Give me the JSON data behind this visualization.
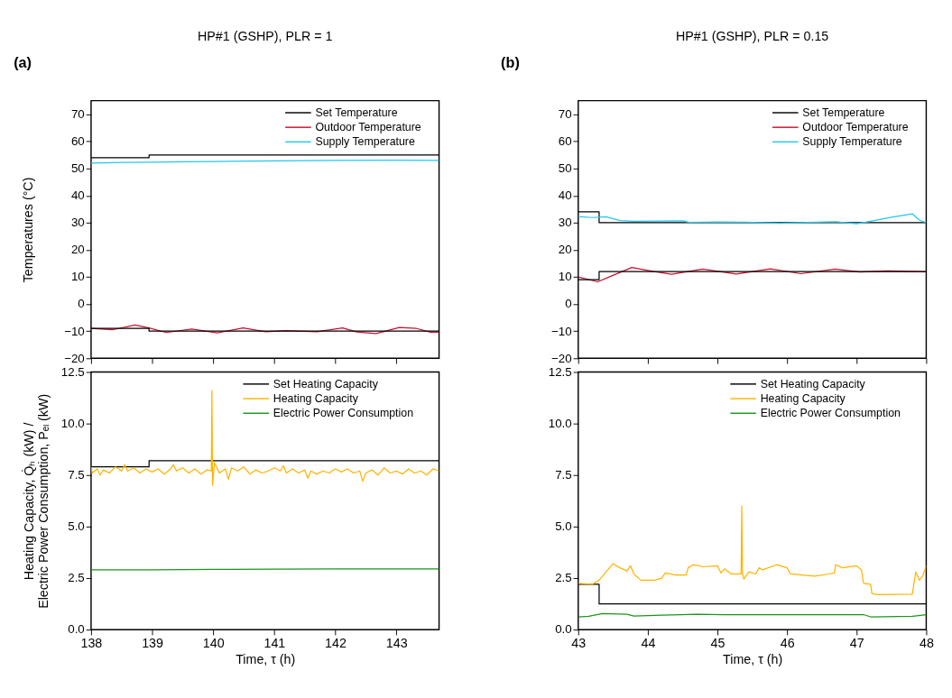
{
  "chart_data": [
    {
      "type": "line",
      "title": "HP#1 (GSHP), PLR = 1",
      "ylabel": "Temperatures (°C)",
      "annotations": [
        "(a)"
      ],
      "xlim": [
        138,
        143.7
      ],
      "xticks": [
        138,
        139,
        140,
        141,
        142,
        143
      ],
      "ylim": [
        -20,
        75
      ],
      "yticks": [
        -20,
        -10,
        0,
        10,
        20,
        30,
        40,
        50,
        60,
        70
      ],
      "tick_labels": "y",
      "legend": "top right",
      "grid": false,
      "series": [
        {
          "name": "Set Temperature",
          "color": "#000000",
          "type": "step",
          "x": [
            138,
            138.95,
            143.7
          ],
          "values": [
            54,
            55,
            55
          ]
        },
        {
          "name": "Outdoor Temperature",
          "color": "#c8102e",
          "x": [
            138,
            138.35,
            138.72,
            138.95,
            139.23,
            139.65,
            140.07,
            140.49,
            140.86,
            141.19,
            141.7,
            142.12,
            142.35,
            142.67,
            143.05,
            143.33,
            143.56,
            143.69
          ],
          "values": [
            -9.0,
            -9.5,
            -7.7,
            -8.8,
            -10.5,
            -9.2,
            -10.6,
            -8.8,
            -10.2,
            -9.8,
            -10.2,
            -8.8,
            -10.3,
            -10.9,
            -8.6,
            -9.0,
            -10.4,
            -10.4
          ]
        },
        {
          "name": "Supply Temperature",
          "color": "#1ec8f0",
          "x": [
            138,
            138.5,
            139,
            139.5,
            140,
            141,
            142,
            143,
            143.7
          ],
          "values": [
            52.0,
            52.2,
            52.3,
            52.5,
            52.6,
            52.8,
            53.0,
            53.1,
            53.0
          ]
        },
        {
          "name": null,
          "color": "#000000",
          "type": "step",
          "x": [
            138,
            138.95,
            143.7
          ],
          "values": [
            -9,
            -10,
            -10
          ]
        }
      ]
    },
    {
      "type": "line",
      "title": "HP#1 (GSHP), PLR = 0.15",
      "annotations": [
        "(b)"
      ],
      "xlim": [
        43,
        48
      ],
      "xticks": [
        43,
        44,
        45,
        46,
        47,
        48
      ],
      "ylim": [
        -20,
        75
      ],
      "yticks": [
        -20,
        -10,
        0,
        10,
        20,
        30,
        40,
        50,
        60,
        70
      ],
      "tick_labels": "y",
      "legend": "top right",
      "grid": false,
      "series": [
        {
          "name": "Set Temperature",
          "color": "#000000",
          "type": "step",
          "x": [
            43,
            43.3,
            48
          ],
          "values": [
            34,
            30,
            30
          ]
        },
        {
          "name": "Outdoor Temperature",
          "color": "#c8102e",
          "x": [
            43,
            43.28,
            43.49,
            43.77,
            44.09,
            44.34,
            44.79,
            45.27,
            45.76,
            46.2,
            46.69,
            47.05,
            47.45,
            48
          ],
          "values": [
            10,
            8.2,
            10.5,
            13.5,
            12,
            11,
            12.9,
            11.1,
            13.0,
            11.2,
            12.9,
            11.8,
            12.2,
            11.9
          ]
        },
        {
          "name": "Supply Temperature",
          "color": "#1ec8f0",
          "x": [
            43,
            43.2,
            43.4,
            43.6,
            43.8,
            44.5,
            44.6,
            45.0,
            45.4,
            45.9,
            46.3,
            46.7,
            47.0,
            47.2,
            47.5,
            47.8,
            47.9,
            48
          ],
          "values": [
            32.3,
            31.9,
            32.2,
            30.8,
            30.5,
            30.7,
            30.1,
            30.3,
            30.2,
            29.8,
            30.1,
            30.4,
            29.6,
            30.5,
            32,
            33.3,
            31,
            30
          ]
        },
        {
          "name": null,
          "color": "#000000",
          "type": "step",
          "x": [
            43,
            43.3,
            48
          ],
          "values": [
            9,
            12,
            12
          ]
        }
      ]
    },
    {
      "type": "line",
      "xlabel": "Time, τ (h)",
      "ylabel": "Heating Capacity, Q̇ₕ (kW) / Electric Power Consumption, Pₑₗ (kW)",
      "xlim": [
        138,
        143.7
      ],
      "xticks": [
        138,
        139,
        140,
        141,
        142,
        143
      ],
      "ylim": [
        0,
        12.5
      ],
      "yticks": [
        {
          "value": 0,
          "label": "0.0"
        },
        {
          "value": 2.5,
          "label": "2.5"
        },
        {
          "value": 5,
          "label": "5.0"
        },
        {
          "value": 7.5,
          "label": "7.5"
        },
        {
          "value": 10,
          "label": "10.0"
        },
        {
          "value": 12.5,
          "label": "12.5"
        }
      ],
      "legend": "top right",
      "grid": false,
      "series": [
        {
          "name": "Set Heating Capacity",
          "color": "#000000",
          "type": "step",
          "x": [
            138,
            138.95,
            143.7
          ],
          "values": [
            7.9,
            8.2,
            8.2
          ]
        },
        {
          "name": "Heating Capacity",
          "color": "#ffb300",
          "x": [
            138.0,
            138.02,
            138.1,
            138.15,
            138.2,
            138.3,
            138.4,
            138.5,
            138.55,
            138.6,
            138.7,
            138.8,
            138.9,
            139.0,
            139.1,
            139.2,
            139.3,
            139.35,
            139.4,
            139.5,
            139.6,
            139.7,
            139.8,
            139.9,
            139.97,
            139.98,
            139.99,
            140.02,
            140.1,
            140.2,
            140.25,
            140.3,
            140.4,
            140.5,
            140.6,
            140.7,
            140.8,
            140.9,
            141.0,
            141.1,
            141.15,
            141.2,
            141.3,
            141.4,
            141.5,
            141.55,
            141.6,
            141.7,
            141.8,
            141.9,
            142.0,
            142.1,
            142.2,
            142.3,
            142.4,
            142.45,
            142.5,
            142.6,
            142.7,
            142.8,
            142.9,
            143.0,
            143.1,
            143.2,
            143.3,
            143.4,
            143.5,
            143.6,
            143.7
          ],
          "values": [
            7.9,
            7.6,
            7.8,
            7.5,
            7.75,
            7.6,
            7.9,
            7.7,
            8.0,
            7.7,
            7.85,
            7.6,
            7.8,
            7.65,
            7.8,
            7.55,
            7.8,
            8.0,
            7.7,
            7.85,
            7.6,
            7.8,
            7.55,
            7.75,
            7.7,
            11.6,
            7.0,
            8.1,
            7.6,
            7.8,
            7.3,
            7.85,
            7.7,
            7.9,
            7.55,
            7.75,
            7.6,
            7.7,
            7.85,
            7.7,
            7.95,
            7.6,
            7.8,
            7.6,
            7.75,
            7.35,
            7.7,
            7.55,
            7.7,
            7.6,
            7.8,
            7.65,
            7.8,
            7.6,
            7.7,
            7.2,
            7.6,
            7.75,
            7.5,
            7.85,
            7.6,
            7.7,
            7.55,
            7.8,
            7.6,
            7.7,
            7.5,
            7.8,
            7.7
          ]
        },
        {
          "name": "Electric Power Consumption",
          "color": "#1a961a",
          "x": [
            138,
            139,
            140,
            141,
            142,
            143,
            143.7
          ],
          "values": [
            2.9,
            2.9,
            2.92,
            2.93,
            2.95,
            2.95,
            2.95
          ]
        }
      ]
    },
    {
      "type": "line",
      "xlabel": "Time, τ (h)",
      "xlim": [
        43,
        48
      ],
      "xticks": [
        43,
        44,
        45,
        46,
        47,
        48
      ],
      "ylim": [
        0,
        12.5
      ],
      "yticks": [
        {
          "value": 0,
          "label": "0.0"
        },
        {
          "value": 2.5,
          "label": "2.5"
        },
        {
          "value": 5,
          "label": "5.0"
        },
        {
          "value": 7.5,
          "label": "7.5"
        },
        {
          "value": 10,
          "label": "10.0"
        },
        {
          "value": 12.5,
          "label": "12.5"
        }
      ],
      "legend": "top right",
      "grid": false,
      "series": [
        {
          "name": "Set Heating Capacity",
          "color": "#000000",
          "type": "step",
          "x": [
            43,
            43.3,
            48
          ],
          "values": [
            2.2,
            1.25,
            1.25
          ]
        },
        {
          "name": "Heating Capacity",
          "color": "#ffb300",
          "x": [
            43,
            43.2,
            43.3,
            43.4,
            43.5,
            43.6,
            43.7,
            43.75,
            43.8,
            43.9,
            44.1,
            44.2,
            44.25,
            44.4,
            44.55,
            44.58,
            44.65,
            44.8,
            45.0,
            45.05,
            45.1,
            45.2,
            45.34,
            45.35,
            45.36,
            45.38,
            45.45,
            45.55,
            45.6,
            45.65,
            45.85,
            46.0,
            46.05,
            46.4,
            46.6,
            46.68,
            46.7,
            46.8,
            47.0,
            47.07,
            47.1,
            47.2,
            47.22,
            47.3,
            47.8,
            47.85,
            47.9,
            47.95,
            48.0
          ],
          "values": [
            2.25,
            2.2,
            2.4,
            2.8,
            3.2,
            3.0,
            2.85,
            3.1,
            2.7,
            2.4,
            2.4,
            2.5,
            2.75,
            2.65,
            2.65,
            3.0,
            3.15,
            3.05,
            3.1,
            2.75,
            2.95,
            2.7,
            2.7,
            6.0,
            2.7,
            2.45,
            2.8,
            2.7,
            3.0,
            2.9,
            3.15,
            3.0,
            2.7,
            2.6,
            2.7,
            2.75,
            3.15,
            3.0,
            3.1,
            2.9,
            2.25,
            2.2,
            1.75,
            1.7,
            1.72,
            2.8,
            2.4,
            2.6,
            3.1
          ]
        },
        {
          "name": "Electric Power Consumption",
          "color": "#1a961a",
          "x": [
            43,
            43.15,
            43.35,
            43.7,
            43.8,
            44.2,
            44.7,
            45.1,
            46.1,
            47.1,
            47.2,
            47.8,
            48
          ],
          "values": [
            0.62,
            0.65,
            0.78,
            0.75,
            0.66,
            0.7,
            0.75,
            0.72,
            0.72,
            0.73,
            0.62,
            0.65,
            0.72
          ]
        }
      ]
    }
  ]
}
